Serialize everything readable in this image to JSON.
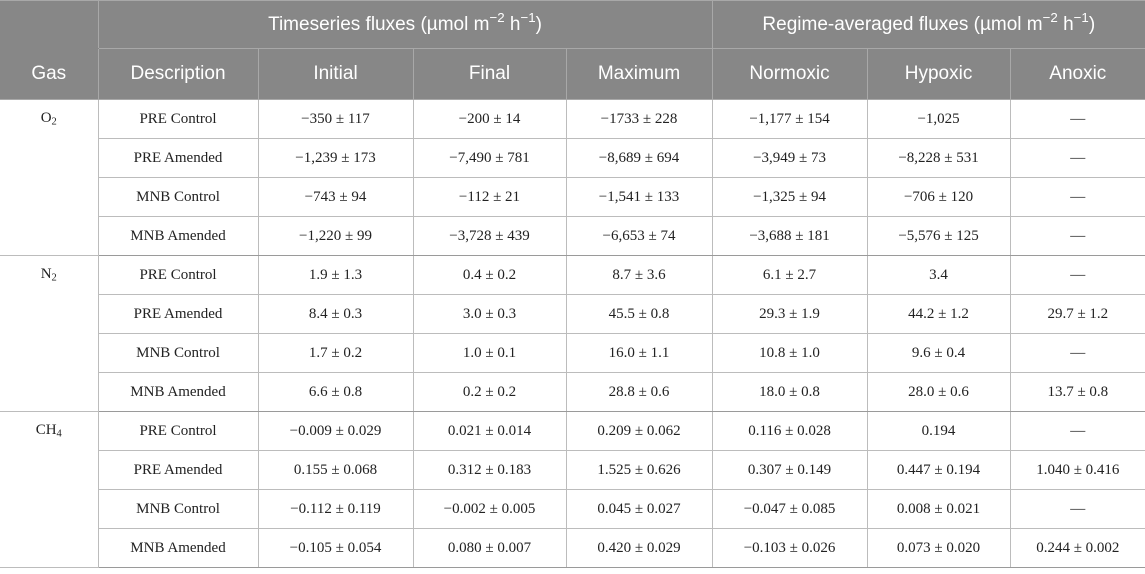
{
  "header": {
    "group_timeseries": {
      "prefix": "Timeseries fluxes (µmol m",
      "exp1": "−2",
      "mid": " h",
      "exp2": "−1",
      "suffix": ")"
    },
    "group_regime": {
      "prefix": "Regime-averaged fluxes (µmol m",
      "exp1": "−2",
      "mid": " h",
      "exp2": "−1",
      "suffix": ")"
    },
    "columns": [
      "Gas",
      "Description",
      "Initial",
      "Final",
      "Maximum",
      "Normoxic",
      "Hypoxic",
      "Anoxic"
    ]
  },
  "gases": [
    {
      "base": "O",
      "sub": "2",
      "rows": [
        [
          "PRE Control",
          "−350 ± 117",
          "−200 ± 14",
          "−1733 ± 228",
          "−1,177 ± 154",
          "−1,025",
          "—"
        ],
        [
          "PRE Amended",
          "−1,239 ± 173",
          "−7,490 ± 781",
          "−8,689 ± 694",
          "−3,949 ± 73",
          "−8,228 ± 531",
          "—"
        ],
        [
          "MNB Control",
          "−743 ± 94",
          "−112 ± 21",
          "−1,541 ± 133",
          "−1,325 ± 94",
          "−706 ± 120",
          "—"
        ],
        [
          "MNB Amended",
          "−1,220 ± 99",
          "−3,728 ± 439",
          "−6,653 ± 74",
          "−3,688 ± 181",
          "−5,576 ± 125",
          "—"
        ]
      ]
    },
    {
      "base": "N",
      "sub": "2",
      "rows": [
        [
          "PRE Control",
          "1.9 ± 1.3",
          "0.4 ± 0.2",
          "8.7 ± 3.6",
          "6.1 ± 2.7",
          "3.4",
          "—"
        ],
        [
          "PRE Amended",
          "8.4 ± 0.3",
          "3.0 ± 0.3",
          "45.5 ± 0.8",
          "29.3 ± 1.9",
          "44.2 ± 1.2",
          "29.7 ± 1.2"
        ],
        [
          "MNB Control",
          "1.7 ± 0.2",
          "1.0 ± 0.1",
          "16.0 ± 1.1",
          "10.8 ± 1.0",
          "9.6 ± 0.4",
          "—"
        ],
        [
          "MNB Amended",
          "6.6 ± 0.8",
          "0.2 ± 0.2",
          "28.8 ± 0.6",
          "18.0 ± 0.8",
          "28.0 ± 0.6",
          "13.7 ± 0.8"
        ]
      ]
    },
    {
      "base": "CH",
      "sub": "4",
      "rows": [
        [
          "PRE Control",
          "−0.009 ± 0.029",
          "0.021 ± 0.014",
          "0.209 ± 0.062",
          "0.116 ± 0.028",
          "0.194",
          "—"
        ],
        [
          "PRE Amended",
          "0.155 ± 0.068",
          "0.312 ± 0.183",
          "1.525 ± 0.626",
          "0.307 ± 0.149",
          "0.447 ± 0.194",
          "1.040 ± 0.416"
        ],
        [
          "MNB Control",
          "−0.112 ± 0.119",
          "−0.002 ± 0.005",
          "0.045 ± 0.027",
          "−0.047 ± 0.085",
          "0.008 ± 0.021",
          "—"
        ],
        [
          "MNB Amended",
          "−0.105 ± 0.054",
          "0.080 ± 0.007",
          "0.420 ± 0.029",
          "−0.103 ± 0.026",
          "0.073 ± 0.020",
          "0.244 ± 0.002"
        ]
      ]
    }
  ]
}
